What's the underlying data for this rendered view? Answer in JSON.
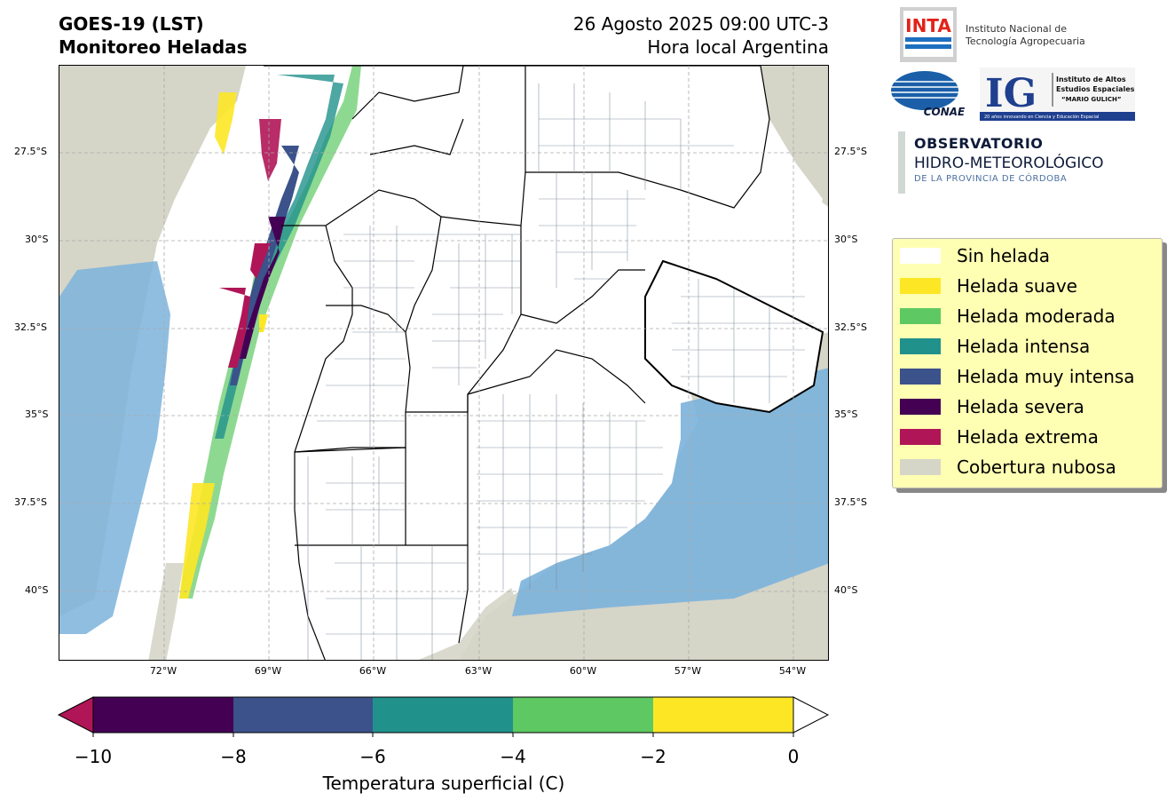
{
  "header": {
    "title_line1": "GOES-19 (LST)",
    "title_line2": "Monitoreo Heladas",
    "date_line": "26 Agosto 2025 09:00 UTC-3",
    "subtitle_line": "Hora local Argentina"
  },
  "map": {
    "lat_labels": [
      "27.5°S",
      "30°S",
      "32.5°S",
      "35°S",
      "37.5°S",
      "40°S"
    ],
    "lon_labels": [
      "72°W",
      "69°W",
      "66°W",
      "63°W",
      "60°W",
      "57°W",
      "54°W"
    ],
    "extent": {
      "lon_min": -75,
      "lon_max": -53,
      "lat_min": -42,
      "lat_max": -25
    },
    "colors": {
      "cloud": "#d5d5c8",
      "ocean_blue": "#7bb3dc",
      "land": "#ffffff",
      "border": "#000000",
      "district": "#7a8a9a"
    }
  },
  "colorbar": {
    "ticks": [
      "−10",
      "−8",
      "−6",
      "−4",
      "−2",
      "0"
    ],
    "label": "Temperatura superficial (C)",
    "segments": [
      "#440154",
      "#3b528b",
      "#21918c",
      "#5ec962",
      "#fde725"
    ],
    "under_color": "#b01557",
    "over_color": "#ffffff"
  },
  "legend": {
    "items": [
      {
        "label": "Sin helada",
        "color": "#ffffff"
      },
      {
        "label": "Helada suave",
        "color": "#fde725"
      },
      {
        "label": "Helada moderada",
        "color": "#5ec962"
      },
      {
        "label": "Helada intensa",
        "color": "#21918c"
      },
      {
        "label": "Helada muy intensa",
        "color": "#3b528b"
      },
      {
        "label": "Helada severa",
        "color": "#440154"
      },
      {
        "label": "Helada extrema",
        "color": "#b01557"
      },
      {
        "label": "Cobertura nubosa",
        "color": "#d5d5c8"
      }
    ]
  },
  "logos": {
    "inta_mark": "INTA",
    "inta_line1": "Instituto Nacional de",
    "inta_line2": "Tecnología Agropecuaria",
    "conae_mark": "CONAE",
    "ig_mark": "IG",
    "ig_line1": "Instituto de Altos",
    "ig_line2": "Estudios Espaciales",
    "ig_line3": "“MARIO GULICH”",
    "ig_tagline": "20 años innovando en Ciencia y Educación Espacial",
    "obs_line1": "OBSERVATORIO",
    "obs_line2": "HIDRO-METEOROLÓGICO",
    "obs_line3": "DE LA PROVINCIA DE CÓRDOBA"
  }
}
